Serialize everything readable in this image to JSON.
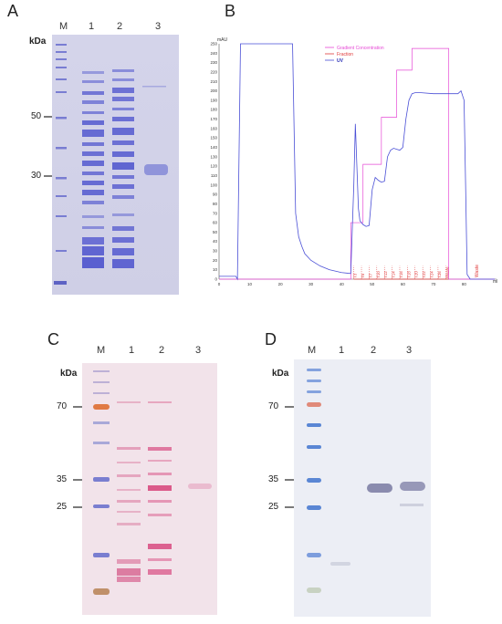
{
  "panels": {
    "A": {
      "letter": "A",
      "lanes": [
        "M",
        "1",
        "2",
        "3"
      ],
      "kda": "kDa",
      "markers": [
        "50",
        "30"
      ]
    },
    "B": {
      "letter": "B",
      "y_unit": "mAU",
      "x_unit": "ml",
      "legend": [
        "Gradient Concentration",
        "Fraction",
        "UV"
      ],
      "y_ticks": [
        "250",
        "240",
        "230",
        "220",
        "210",
        "200",
        "190",
        "180",
        "170",
        "160",
        "150",
        "140",
        "130",
        "120",
        "110",
        "100",
        "90",
        "80",
        "70",
        "60",
        "50",
        "40",
        "30",
        "20",
        "10",
        "0"
      ],
      "x_ticks": [
        "0",
        "10",
        "20",
        "30",
        "40",
        "50",
        "60",
        "70",
        "80"
      ],
      "fractions": [
        "T3",
        "T5",
        "T7",
        "T10",
        "T12",
        "T14",
        "T16",
        "T18",
        "T20",
        "T22",
        "T24",
        "T26",
        "Waste"
      ],
      "waste_end": "Waste"
    },
    "C": {
      "letter": "C",
      "lanes": [
        "M",
        "1",
        "2",
        "3"
      ],
      "kda": "kDa",
      "markers": [
        "70",
        "35",
        "25"
      ]
    },
    "D": {
      "letter": "D",
      "lanes": [
        "M",
        "1",
        "2",
        "3"
      ],
      "kda": "kDa",
      "markers": [
        "70",
        "35",
        "25"
      ]
    }
  },
  "chart_data": {
    "type": "line",
    "title": "",
    "xlabel": "ml",
    "ylabel": "mAU",
    "xlim": [
      0,
      90
    ],
    "ylim": [
      0,
      250
    ],
    "series": [
      {
        "name": "UV",
        "color": "#4a4fd6",
        "x": [
          0,
          5.5,
          6,
          7,
          24,
          25,
          26,
          27,
          28,
          30,
          33,
          36,
          40,
          43,
          44,
          44.5,
          45,
          45.5,
          46,
          47,
          48,
          49,
          50,
          51,
          52,
          53,
          54,
          55,
          56,
          57,
          58,
          59,
          60,
          61,
          62,
          63,
          64,
          66,
          70,
          75,
          78,
          79,
          80,
          80.5,
          81,
          82,
          90
        ],
        "y": [
          3,
          3,
          0,
          250,
          250,
          70,
          45,
          35,
          27,
          20,
          14,
          10,
          7,
          6,
          100,
          165,
          120,
          75,
          62,
          58,
          56,
          57,
          95,
          108,
          105,
          103,
          104,
          130,
          137,
          139,
          138,
          137,
          140,
          170,
          190,
          197,
          198,
          198,
          197,
          197,
          197,
          200,
          190,
          100,
          5,
          0,
          0
        ]
      },
      {
        "name": "Gradient Concentration",
        "color": "#e64ad6",
        "x": [
          0,
          43,
          43,
          47,
          47,
          53,
          53,
          58,
          58,
          63,
          63,
          75,
          75,
          90
        ],
        "y": [
          0,
          0,
          60,
          60,
          122,
          122,
          172,
          172,
          222,
          222,
          245,
          245,
          0,
          0
        ]
      },
      {
        "name": "Fraction",
        "color": "#e03a3a",
        "x": [
          44,
          75
        ],
        "y": [
          0,
          0
        ]
      }
    ]
  }
}
